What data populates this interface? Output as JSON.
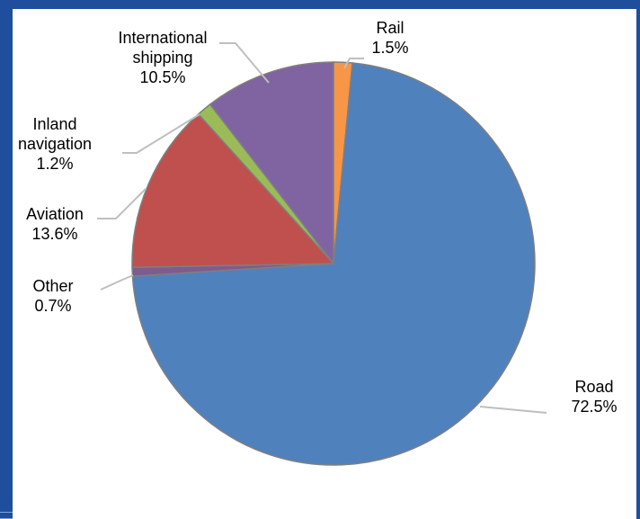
{
  "chart_data": {
    "type": "pie",
    "title": "",
    "start_angle_deg": 0,
    "direction": "clockwise",
    "slices": [
      {
        "label": "Rail",
        "value": 1.5,
        "value_label": "1.5%",
        "color": "#f79646"
      },
      {
        "label": "Road",
        "value": 72.5,
        "value_label": "72.5%",
        "color": "#4f81bd"
      },
      {
        "label": "Other",
        "value": 0.7,
        "value_label": "0.7%",
        "color": "#7f5b8e"
      },
      {
        "label": "Aviation",
        "value": 13.6,
        "value_label": "13.6%",
        "color": "#c0504d"
      },
      {
        "label": "Inland navigation",
        "value": 1.2,
        "value_label": "1.2%",
        "color": "#9bbb59"
      },
      {
        "label": "International shipping",
        "value": 10.5,
        "value_label": "10.5%",
        "color": "#8064a2"
      }
    ]
  },
  "colors": {
    "frame": "#1f4e9c",
    "leader_line": "#bfbfbf",
    "slice_border": "#7f7f7f"
  }
}
